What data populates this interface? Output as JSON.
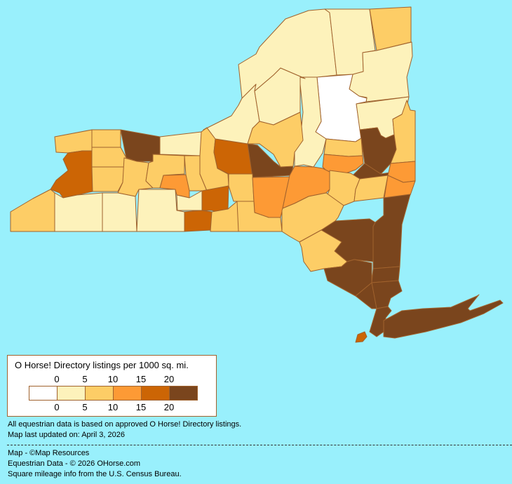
{
  "legend": {
    "title": "O Horse! Directory listings per 1000 sq. mi.",
    "top_labels": [
      "0",
      "5",
      "10",
      "15",
      "20"
    ],
    "bottom_labels": [
      "0",
      "5",
      "10",
      "15",
      "20"
    ],
    "bins": [
      {
        "range": "0",
        "color": "#ffffff"
      },
      {
        "range": "0-5",
        "color": "#fdf2bb"
      },
      {
        "range": "5-10",
        "color": "#fdcd66"
      },
      {
        "range": "10-15",
        "color": "#fd9a35"
      },
      {
        "range": "15-20",
        "color": "#cc6505"
      },
      {
        "range": "20+",
        "color": "#7a451d"
      }
    ]
  },
  "notes": {
    "line1": "All equestrian data is based on approved O Horse! Directory listings.",
    "line2": "Map last updated on: April 3, 2026"
  },
  "credits": {
    "line1": "Map - ©Map Resources",
    "line2": "Equestrian Data - © 2026 OHorse.com",
    "line3": "Square mileage info from the U.S. Census Bureau."
  },
  "colors": {
    "water": "#99f0fc",
    "border": "#a0622d"
  }
}
